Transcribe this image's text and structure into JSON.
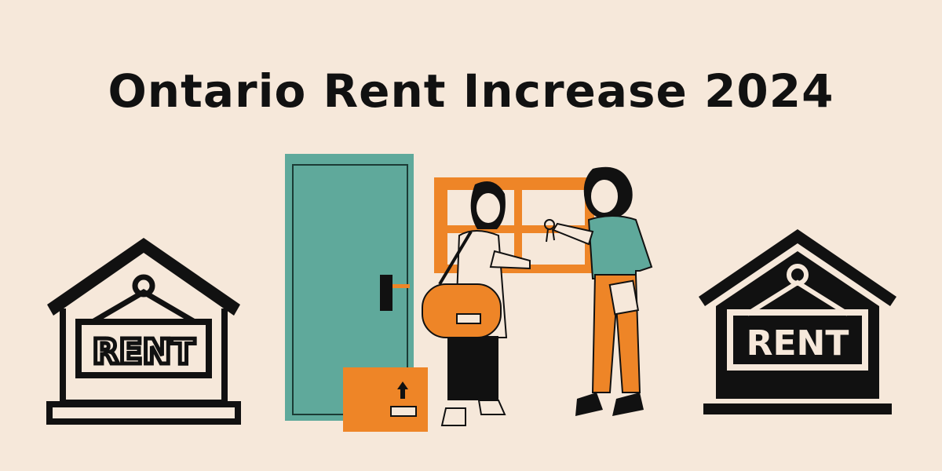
{
  "title": "Ontario Rent Increase 2024",
  "left_sign": {
    "label": "RENT",
    "style": "outline"
  },
  "right_sign": {
    "label": "RENT",
    "style": "filled"
  },
  "colors": {
    "background": "#f6e8da",
    "door": "#5fa99b",
    "accent": "#ee8527",
    "ink": "#111111"
  },
  "icons": [
    "house-rent-sign-outline-icon",
    "house-rent-sign-filled-icon",
    "door-icon",
    "window-icon",
    "box-icon",
    "duffel-bag-icon",
    "keys-icon"
  ]
}
